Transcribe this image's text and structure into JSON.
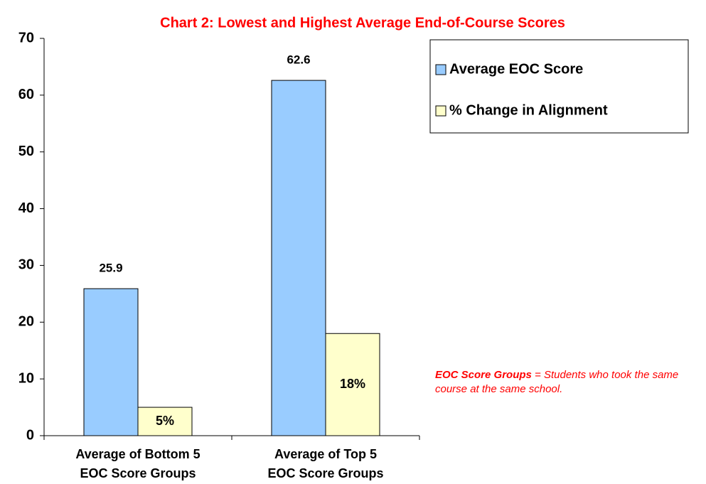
{
  "chart_data": {
    "type": "bar",
    "title": "Chart  2: Lowest and Highest Average End-of-Course Scores",
    "categories": [
      [
        "Average of Bottom 5",
        "EOC Score Groups"
      ],
      [
        "Average of Top 5",
        "EOC Score Groups"
      ]
    ],
    "series": [
      {
        "name": "Average EOC Score",
        "color": "#99ccff",
        "values": [
          25.9,
          62.6
        ]
      },
      {
        "name": "% Change in Alignment",
        "color": "#ffffcc",
        "values": [
          5,
          18
        ],
        "value_labels": [
          "5%",
          "18%"
        ]
      }
    ],
    "ylim": [
      0,
      70
    ],
    "yticks": [
      0,
      10,
      20,
      30,
      40,
      50,
      60,
      70
    ],
    "annotation": {
      "term": "EOC Score Groups",
      "text": "= Students who took the same course at the same school."
    },
    "legend": "right"
  }
}
